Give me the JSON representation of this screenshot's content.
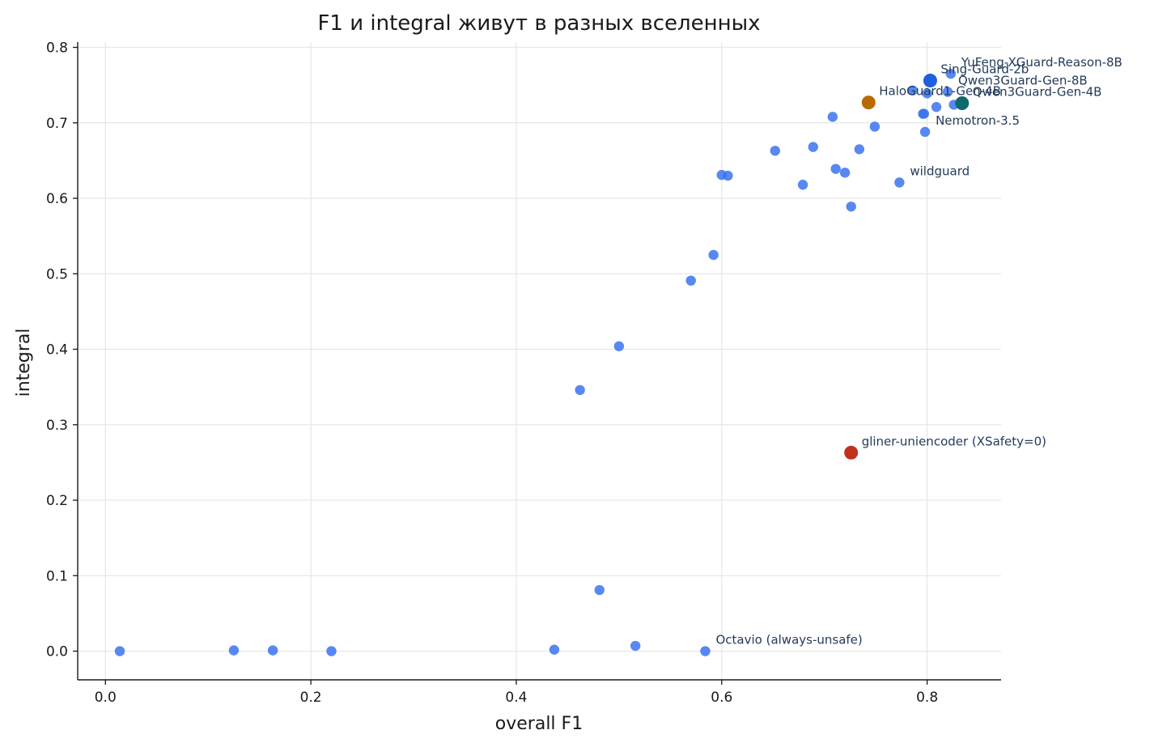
{
  "chart_data": {
    "type": "scatter",
    "title": "F1 и integral живут в разных вселенных",
    "xlabel": "overall F1",
    "ylabel": "integral",
    "xlim": [
      -0.027,
      0.872
    ],
    "ylim": [
      -0.038,
      0.807
    ],
    "xticks": [
      0.0,
      0.2,
      0.4,
      0.6,
      0.8
    ],
    "xtick_labels": [
      "0.0",
      "0.2",
      "0.4",
      "0.6",
      "0.8"
    ],
    "yticks": [
      0.0,
      0.1,
      0.2,
      0.3,
      0.4,
      0.5,
      0.6,
      0.7,
      0.8
    ],
    "ytick_labels": [
      "0.0",
      "0.1",
      "0.2",
      "0.3",
      "0.4",
      "0.5",
      "0.6",
      "0.7",
      "0.8"
    ],
    "grid": true,
    "colors": {
      "default": "#3b73ee",
      "highlight_blue": "#1f5fe0",
      "orange": "#b86a00",
      "teal": "#0e6b6b",
      "red": "#c0301c"
    },
    "points": [
      {
        "x": 0.014,
        "y": 0.0
      },
      {
        "x": 0.125,
        "y": 0.001
      },
      {
        "x": 0.163,
        "y": 0.001
      },
      {
        "x": 0.22,
        "y": 0.0
      },
      {
        "x": 0.437,
        "y": 0.002
      },
      {
        "x": 0.516,
        "y": 0.007
      },
      {
        "x": 0.584,
        "y": 0.0
      },
      {
        "x": 0.481,
        "y": 0.081
      },
      {
        "x": 0.462,
        "y": 0.346
      },
      {
        "x": 0.5,
        "y": 0.404
      },
      {
        "x": 0.57,
        "y": 0.491
      },
      {
        "x": 0.592,
        "y": 0.525
      },
      {
        "x": 0.6,
        "y": 0.631
      },
      {
        "x": 0.606,
        "y": 0.63
      },
      {
        "x": 0.652,
        "y": 0.663
      },
      {
        "x": 0.679,
        "y": 0.618
      },
      {
        "x": 0.689,
        "y": 0.668
      },
      {
        "x": 0.708,
        "y": 0.708
      },
      {
        "x": 0.711,
        "y": 0.639
      },
      {
        "x": 0.72,
        "y": 0.634
      },
      {
        "x": 0.726,
        "y": 0.589
      },
      {
        "x": 0.734,
        "y": 0.665
      },
      {
        "x": 0.749,
        "y": 0.695
      },
      {
        "x": 0.773,
        "y": 0.621
      },
      {
        "x": 0.786,
        "y": 0.743
      },
      {
        "x": 0.796,
        "y": 0.712
      },
      {
        "x": 0.797,
        "y": 0.712
      },
      {
        "x": 0.798,
        "y": 0.688
      },
      {
        "x": 0.8,
        "y": 0.739
      },
      {
        "x": 0.809,
        "y": 0.721
      },
      {
        "x": 0.82,
        "y": 0.741
      },
      {
        "x": 0.823,
        "y": 0.765
      },
      {
        "x": 0.826,
        "y": 0.724
      },
      {
        "x": 0.803,
        "y": 0.756,
        "color": "highlight_blue",
        "big": true
      },
      {
        "x": 0.743,
        "y": 0.727,
        "color": "orange",
        "big": true
      },
      {
        "x": 0.834,
        "y": 0.726,
        "color": "teal",
        "big": true
      },
      {
        "x": 0.726,
        "y": 0.263,
        "color": "red",
        "big": true
      }
    ],
    "annotations": [
      {
        "text": "YuFeng-XGuard-Reason-8B",
        "x": 0.823,
        "y": 0.765
      },
      {
        "text": "Sing-Guard-2b",
        "x": 0.803,
        "y": 0.756
      },
      {
        "text": "HaloGuard1-Gen-4B",
        "x": 0.743,
        "y": 0.727
      },
      {
        "text": "Qwen3Guard-Gen-8B",
        "x": 0.82,
        "y": 0.741
      },
      {
        "text": "Qwen3Guard-Gen-4B",
        "x": 0.834,
        "y": 0.726
      },
      {
        "text": "Nemotron-3.5",
        "x": 0.798,
        "y": 0.688
      },
      {
        "text": "wildguard",
        "x": 0.773,
        "y": 0.621
      },
      {
        "text": "gliner-uniencoder (XSafety=0)",
        "x": 0.726,
        "y": 0.263
      },
      {
        "text": "Octavio (always-unsafe)",
        "x": 0.584,
        "y": 0.0
      }
    ]
  }
}
